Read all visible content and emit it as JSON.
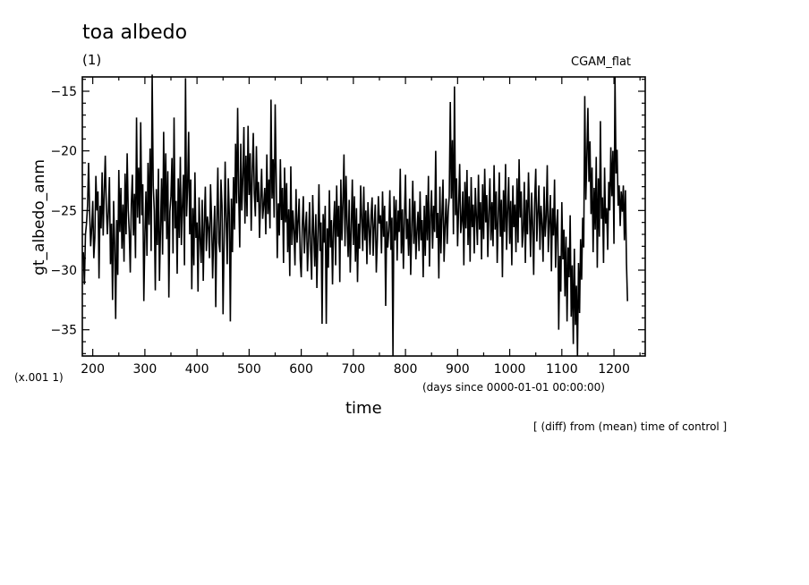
{
  "chart_data": {
    "type": "line",
    "title": "toa albedo",
    "units": "(1)",
    "run_label": "CGAM_flat",
    "ylabel": "gt_albedo_anm",
    "xlabel": "time",
    "x_units": "(days since 0000-01-01 00:00:00)",
    "scale_note": "(x.001 1)",
    "footnote": "[ (diff) from (mean) time of control ]",
    "xlim": [
      180,
      1260
    ],
    "ylim": [
      -37.2,
      -13.8
    ],
    "xticks": [
      200,
      300,
      400,
      500,
      600,
      700,
      800,
      900,
      1000,
      1100,
      1200
    ],
    "yticks": [
      -35,
      -30,
      -25,
      -20,
      -15
    ],
    "x_start": 182,
    "x_step": 2,
    "values": [
      -28.5,
      -31.2,
      -27.0,
      -26.1,
      -24.6,
      -21.0,
      -25.1,
      -28.0,
      -26.5,
      -24.2,
      -29.0,
      -27.3,
      -22.1,
      -25.0,
      -23.4,
      -30.7,
      -24.6,
      -26.5,
      -21.8,
      -27.1,
      -23.5,
      -20.4,
      -24.6,
      -27.0,
      -25.1,
      -22.2,
      -29.5,
      -26.1,
      -32.5,
      -24.2,
      -27.9,
      -34.1,
      -25.8,
      -30.4,
      -21.6,
      -26.8,
      -23.1,
      -28.2,
      -24.5,
      -29.3,
      -21.9,
      -27.0,
      -20.2,
      -24.9,
      -26.8,
      -30.2,
      -24.4,
      -22.0,
      -27.1,
      -23.6,
      -29.0,
      -17.2,
      -25.6,
      -21.4,
      -26.1,
      -17.6,
      -25.4,
      -22.8,
      -32.6,
      -27.1,
      -23.4,
      -28.8,
      -21.0,
      -26.2,
      -19.8,
      -28.4,
      -13.6,
      -22.9,
      -25.0,
      -31.7,
      -23.2,
      -27.9,
      -21.5,
      -30.9,
      -26.6,
      -22.3,
      -28.7,
      -18.4,
      -25.9,
      -20.2,
      -27.4,
      -21.7,
      -32.3,
      -25.1,
      -23.8,
      -20.6,
      -28.6,
      -17.2,
      -26.5,
      -24.2,
      -30.3,
      -22.3,
      -27.3,
      -20.5,
      -27.9,
      -24.6,
      -22.0,
      -29.6,
      -13.9,
      -25.5,
      -23.0,
      -18.4,
      -27.0,
      -22.4,
      -31.6,
      -24.8,
      -29.6,
      -21.8,
      -27.3,
      -26.0,
      -31.8,
      -23.9,
      -27.4,
      -29.4,
      -24.1,
      -30.9,
      -26.1,
      -23.0,
      -28.4,
      -25.5,
      -26.4,
      -29.0,
      -22.8,
      -25.8,
      -30.7,
      -27.1,
      -24.6,
      -33.1,
      -26.0,
      -21.4,
      -27.7,
      -28.5,
      -22.4,
      -24.6,
      -33.7,
      -27.6,
      -20.9,
      -25.9,
      -29.5,
      -22.3,
      -25.3,
      -34.3,
      -24.0,
      -28.5,
      -22.2,
      -26.6,
      -19.4,
      -24.4,
      -16.4,
      -23.5,
      -28.1,
      -19.4,
      -25.0,
      -22.2,
      -18.0,
      -26.1,
      -20.4,
      -25.5,
      -17.9,
      -23.7,
      -20.2,
      -26.7,
      -21.9,
      -18.5,
      -23.6,
      -25.5,
      -19.6,
      -24.3,
      -22.6,
      -27.3,
      -24.1,
      -21.5,
      -25.7,
      -24.5,
      -23.1,
      -27.0,
      -20.3,
      -25.3,
      -22.4,
      -26.5,
      -15.7,
      -24.0,
      -20.7,
      -25.6,
      -16.1,
      -22.3,
      -29.0,
      -24.4,
      -27.1,
      -20.7,
      -25.8,
      -23.1,
      -29.4,
      -21.4,
      -26.0,
      -22.7,
      -28.5,
      -24.9,
      -30.5,
      -21.3,
      -27.9,
      -25.0,
      -26.7,
      -29.6,
      -23.2,
      -27.7,
      -25.9,
      -24.0,
      -29.1,
      -30.6,
      -26.2,
      -23.8,
      -28.6,
      -26.5,
      -25.1,
      -30.1,
      -27.6,
      -24.3,
      -28.3,
      -30.8,
      -23.7,
      -26.9,
      -29.7,
      -25.3,
      -31.5,
      -27.0,
      -22.8,
      -28.4,
      -26.0,
      -34.5,
      -25.3,
      -27.7,
      -24.6,
      -34.5,
      -26.5,
      -29.8,
      -23.3,
      -28.1,
      -25.8,
      -31.2,
      -26.3,
      -24.2,
      -29.6,
      -22.9,
      -27.2,
      -24.6,
      -31.0,
      -22.4,
      -27.5,
      -24.3,
      -20.3,
      -28.0,
      -22.1,
      -26.1,
      -28.9,
      -24.1,
      -30.2,
      -26.5,
      -22.4,
      -27.9,
      -23.8,
      -29.3,
      -24.8,
      -31.0,
      -26.1,
      -28.2,
      -22.9,
      -25.6,
      -28.4,
      -23.0,
      -27.5,
      -25.0,
      -29.5,
      -24.3,
      -26.3,
      -28.7,
      -25.4,
      -23.9,
      -28.8,
      -26.2,
      -24.5,
      -30.2,
      -27.5,
      -23.8,
      -26.1,
      -25.4,
      -28.6,
      -23.4,
      -27.2,
      -24.6,
      -33.0,
      -25.9,
      -28.1,
      -26.7,
      -23.3,
      -28.3,
      -25.6,
      -37.2,
      -23.8,
      -27.5,
      -24.1,
      -29.2,
      -25.0,
      -26.8,
      -21.5,
      -28.6,
      -24.9,
      -29.9,
      -25.6,
      -22.0,
      -27.4,
      -25.7,
      -28.8,
      -24.0,
      -30.4,
      -26.6,
      -22.5,
      -27.8,
      -24.2,
      -29.1,
      -26.7,
      -25.1,
      -28.4,
      -23.4,
      -27.5,
      -25.8,
      -30.6,
      -24.6,
      -28.8,
      -23.7,
      -27.5,
      -22.1,
      -29.7,
      -25.5,
      -23.3,
      -28.2,
      -24.6,
      -26.8,
      -20.0,
      -27.3,
      -25.2,
      -30.7,
      -23.0,
      -28.6,
      -25.4,
      -22.4,
      -29.3,
      -26.3,
      -24.0,
      -27.8,
      -25.1,
      -23.8,
      -15.9,
      -24.0,
      -19.1,
      -27.0,
      -14.6,
      -25.4,
      -22.3,
      -28.0,
      -24.7,
      -21.1,
      -26.9,
      -25.9,
      -23.4,
      -29.6,
      -22.6,
      -26.5,
      -21.6,
      -27.9,
      -23.8,
      -29.3,
      -22.2,
      -26.4,
      -24.5,
      -28.6,
      -23.1,
      -25.5,
      -27.9,
      -22.0,
      -26.6,
      -24.3,
      -29.1,
      -22.8,
      -27.4,
      -21.5,
      -26.0,
      -23.7,
      -28.9,
      -25.1,
      -22.3,
      -27.5,
      -24.3,
      -28.0,
      -21.2,
      -26.6,
      -23.4,
      -29.4,
      -25.6,
      -21.8,
      -27.2,
      -24.1,
      -30.6,
      -23.3,
      -26.8,
      -21.1,
      -28.3,
      -25.0,
      -22.2,
      -27.8,
      -24.2,
      -29.6,
      -22.9,
      -26.4,
      -24.5,
      -28.5,
      -22.3,
      -27.7,
      -20.7,
      -25.6,
      -23.4,
      -28.1,
      -26.7,
      -22.6,
      -29.4,
      -24.1,
      -27.0,
      -21.8,
      -25.2,
      -28.9,
      -23.5,
      -26.3,
      -30.4,
      -24.0,
      -21.5,
      -27.6,
      -25.2,
      -22.9,
      -28.3,
      -24.6,
      -26.1,
      -29.3,
      -23.0,
      -27.2,
      -25.5,
      -21.2,
      -28.5,
      -26.0,
      -23.7,
      -30.1,
      -24.8,
      -27.1,
      -22.4,
      -29.8,
      -26.2,
      -24.9,
      -35.0,
      -28.8,
      -31.8,
      -24.3,
      -29.1,
      -26.6,
      -32.2,
      -27.2,
      -34.3,
      -28.1,
      -30.6,
      -25.4,
      -33.9,
      -29.6,
      -36.2,
      -28.2,
      -34.6,
      -31.3,
      -37.2,
      -29.4,
      -33.6,
      -27.4,
      -30.8,
      -25.6,
      -28.1,
      -15.4,
      -24.1,
      -20.5,
      -16.4,
      -22.6,
      -19.2,
      -25.3,
      -21.4,
      -28.5,
      -23.1,
      -26.6,
      -20.5,
      -29.8,
      -22.3,
      -27.2,
      -17.5,
      -25.7,
      -23.9,
      -29.4,
      -21.4,
      -26.1,
      -24.8,
      -28.3,
      -22.6,
      -25.0,
      -19.7,
      -23.8,
      -20.0,
      -27.8,
      -13.8,
      -21.9,
      -19.9,
      -24.6,
      -22.9,
      -26.3,
      -23.4,
      -25.1,
      -22.9,
      -27.5,
      -23.3,
      -29.4,
      -32.6
    ]
  }
}
